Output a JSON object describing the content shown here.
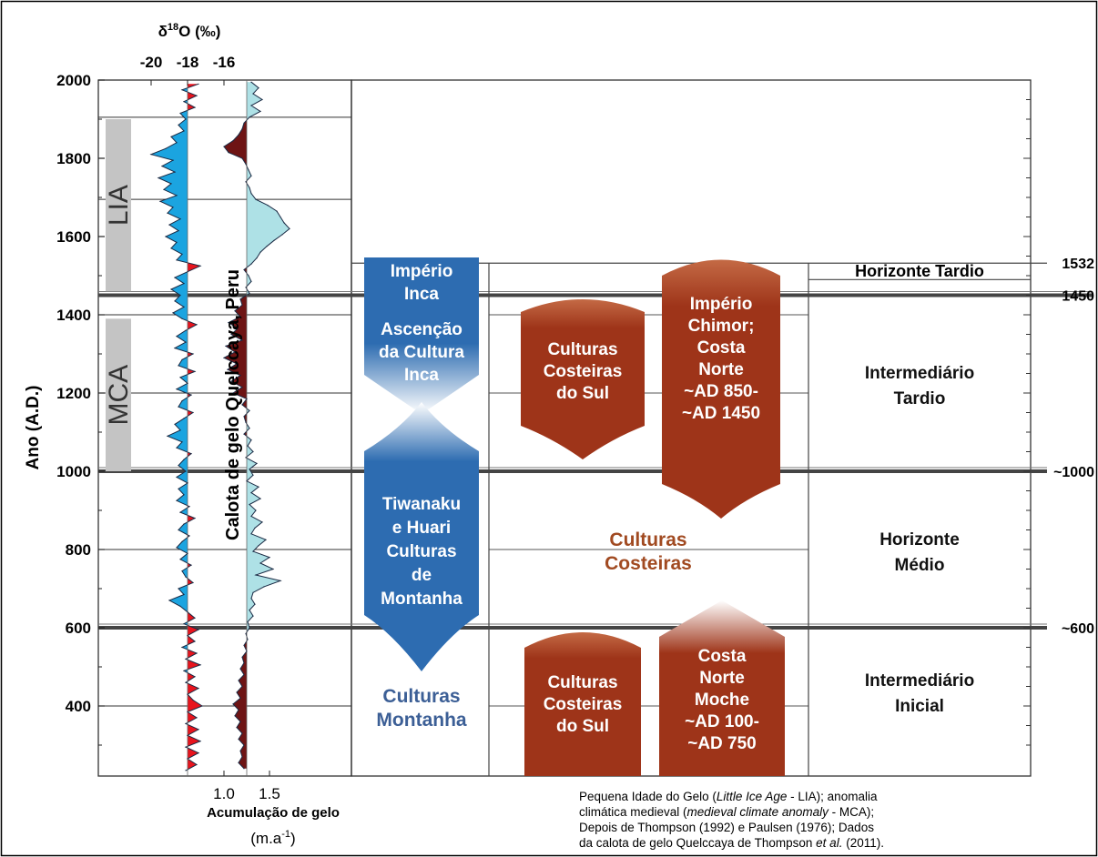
{
  "chart_data": {
    "type": "area",
    "title": "",
    "ylabel": "Ano (A.D.)",
    "ylim": [
      220,
      2000
    ],
    "yticks": [
      400,
      600,
      800,
      1000,
      1200,
      1400,
      1600,
      1800,
      2000
    ],
    "core_label": "Calota de gelo Quelccaya, Peru",
    "d18o": {
      "label_prefix": "δ",
      "label_sup": "18",
      "label_suffix": "O (‰)",
      "ticks": [
        "-20",
        "-18",
        "-16"
      ],
      "tick_values": [
        -20,
        -18,
        -16
      ],
      "baseline": -18.0,
      "colors": {
        "positive": "#e8141d",
        "negative": "#1ba4e0"
      },
      "values": [
        [
          1990,
          -17.4
        ],
        [
          1975,
          -18.3
        ],
        [
          1960,
          -17.5
        ],
        [
          1945,
          -18.2
        ],
        [
          1930,
          -17.6
        ],
        [
          1915,
          -18.4
        ],
        [
          1900,
          -18.1
        ],
        [
          1885,
          -18.5
        ],
        [
          1870,
          -18.2
        ],
        [
          1855,
          -18.9
        ],
        [
          1840,
          -18.6
        ],
        [
          1825,
          -19.2
        ],
        [
          1810,
          -20.0
        ],
        [
          1795,
          -18.8
        ],
        [
          1780,
          -19.4
        ],
        [
          1765,
          -18.7
        ],
        [
          1750,
          -19.6
        ],
        [
          1735,
          -18.9
        ],
        [
          1720,
          -19.3
        ],
        [
          1705,
          -18.6
        ],
        [
          1690,
          -19.5
        ],
        [
          1675,
          -18.8
        ],
        [
          1660,
          -19.1
        ],
        [
          1645,
          -18.4
        ],
        [
          1630,
          -19.0
        ],
        [
          1615,
          -18.5
        ],
        [
          1600,
          -19.2
        ],
        [
          1585,
          -18.6
        ],
        [
          1570,
          -18.9
        ],
        [
          1555,
          -18.3
        ],
        [
          1540,
          -18.6
        ],
        [
          1525,
          -17.3
        ],
        [
          1510,
          -18.0
        ],
        [
          1495,
          -18.7
        ],
        [
          1480,
          -18.2
        ],
        [
          1465,
          -18.9
        ],
        [
          1450,
          -18.4
        ],
        [
          1435,
          -18.7
        ],
        [
          1420,
          -18.2
        ],
        [
          1405,
          -18.8
        ],
        [
          1390,
          -18.3
        ],
        [
          1375,
          -17.5
        ],
        [
          1360,
          -18.1
        ],
        [
          1345,
          -18.6
        ],
        [
          1330,
          -18.1
        ],
        [
          1315,
          -18.7
        ],
        [
          1300,
          -17.7
        ],
        [
          1285,
          -18.3
        ],
        [
          1270,
          -18.5
        ],
        [
          1255,
          -17.6
        ],
        [
          1240,
          -18.4
        ],
        [
          1225,
          -18.0
        ],
        [
          1210,
          -18.6
        ],
        [
          1195,
          -17.8
        ],
        [
          1180,
          -18.3
        ],
        [
          1165,
          -18.5
        ],
        [
          1150,
          -17.7
        ],
        [
          1135,
          -18.2
        ],
        [
          1120,
          -18.7
        ],
        [
          1105,
          -18.4
        ],
        [
          1090,
          -19.1
        ],
        [
          1075,
          -18.3
        ],
        [
          1060,
          -18.6
        ],
        [
          1045,
          -17.8
        ],
        [
          1030,
          -18.2
        ],
        [
          1015,
          -18.5
        ],
        [
          1000,
          -18.1
        ],
        [
          985,
          -18.6
        ],
        [
          970,
          -18.0
        ],
        [
          955,
          -18.5
        ],
        [
          940,
          -18.2
        ],
        [
          925,
          -18.6
        ],
        [
          910,
          -17.9
        ],
        [
          895,
          -18.4
        ],
        [
          880,
          -17.6
        ],
        [
          865,
          -18.2
        ],
        [
          850,
          -18.5
        ],
        [
          835,
          -17.9
        ],
        [
          820,
          -18.3
        ],
        [
          805,
          -18.6
        ],
        [
          790,
          -18.0
        ],
        [
          775,
          -18.4
        ],
        [
          760,
          -17.8
        ],
        [
          745,
          -18.3
        ],
        [
          730,
          -18.1
        ],
        [
          715,
          -17.7
        ],
        [
          700,
          -18.5
        ],
        [
          685,
          -18.2
        ],
        [
          670,
          -19.0
        ],
        [
          655,
          -18.4
        ],
        [
          640,
          -18.0
        ],
        [
          625,
          -17.6
        ],
        [
          610,
          -18.2
        ],
        [
          595,
          -17.4
        ],
        [
          580,
          -18.0
        ],
        [
          565,
          -17.6
        ],
        [
          550,
          -18.3
        ],
        [
          535,
          -17.5
        ],
        [
          520,
          -18.1
        ],
        [
          505,
          -17.3
        ],
        [
          490,
          -18.2
        ],
        [
          475,
          -17.6
        ],
        [
          460,
          -18.1
        ],
        [
          445,
          -17.4
        ],
        [
          430,
          -18.0
        ],
        [
          415,
          -17.7
        ],
        [
          400,
          -17.2
        ],
        [
          385,
          -18.0
        ],
        [
          370,
          -17.5
        ],
        [
          355,
          -18.1
        ],
        [
          340,
          -17.4
        ],
        [
          325,
          -18.0
        ],
        [
          310,
          -17.3
        ],
        [
          295,
          -18.1
        ],
        [
          280,
          -17.4
        ],
        [
          265,
          -18.0
        ],
        [
          250,
          -17.5
        ],
        [
          235,
          -18.1
        ]
      ]
    },
    "accumulation": {
      "xlabel": "Acumulação de gelo",
      "unit_prefix": "(m.a",
      "unit_sup": "-1",
      "unit_suffix": ")",
      "ticks": [
        "1.0",
        "1.5"
      ],
      "tick_values": [
        1.0,
        1.5
      ],
      "baseline": 1.25,
      "colors": {
        "positive": "#aee1e6",
        "negative": "#6e1414"
      },
      "values": [
        [
          1995,
          1.3
        ],
        [
          1980,
          1.38
        ],
        [
          1965,
          1.32
        ],
        [
          1950,
          1.42
        ],
        [
          1935,
          1.3
        ],
        [
          1920,
          1.4
        ],
        [
          1905,
          1.28
        ],
        [
          1890,
          1.22
        ],
        [
          1875,
          1.2
        ],
        [
          1860,
          1.16
        ],
        [
          1845,
          1.1
        ],
        [
          1830,
          1.0
        ],
        [
          1815,
          1.05
        ],
        [
          1800,
          1.2
        ],
        [
          1785,
          1.24
        ],
        [
          1770,
          1.27
        ],
        [
          1755,
          1.3
        ],
        [
          1740,
          1.24
        ],
        [
          1725,
          1.28
        ],
        [
          1710,
          1.3
        ],
        [
          1695,
          1.35
        ],
        [
          1680,
          1.48
        ],
        [
          1665,
          1.58
        ],
        [
          1650,
          1.62
        ],
        [
          1635,
          1.66
        ],
        [
          1620,
          1.72
        ],
        [
          1605,
          1.64
        ],
        [
          1590,
          1.55
        ],
        [
          1575,
          1.47
        ],
        [
          1560,
          1.4
        ],
        [
          1545,
          1.36
        ],
        [
          1530,
          1.3
        ],
        [
          1515,
          1.22
        ],
        [
          1500,
          1.27
        ],
        [
          1485,
          1.3
        ],
        [
          1470,
          1.24
        ],
        [
          1455,
          1.28
        ],
        [
          1440,
          1.18
        ],
        [
          1425,
          1.2
        ],
        [
          1410,
          1.12
        ],
        [
          1395,
          1.18
        ],
        [
          1380,
          1.05
        ],
        [
          1365,
          1.15
        ],
        [
          1350,
          1.08
        ],
        [
          1335,
          1.2
        ],
        [
          1320,
          1.02
        ],
        [
          1305,
          1.12
        ],
        [
          1290,
          1.0
        ],
        [
          1275,
          1.14
        ],
        [
          1260,
          1.04
        ],
        [
          1245,
          1.18
        ],
        [
          1230,
          1.08
        ],
        [
          1215,
          1.2
        ],
        [
          1200,
          1.1
        ],
        [
          1185,
          1.25
        ],
        [
          1170,
          1.2
        ],
        [
          1155,
          1.28
        ],
        [
          1140,
          1.22
        ],
        [
          1125,
          1.24
        ],
        [
          1110,
          1.28
        ],
        [
          1095,
          1.22
        ],
        [
          1080,
          1.3
        ],
        [
          1065,
          1.26
        ],
        [
          1050,
          1.32
        ],
        [
          1035,
          1.24
        ],
        [
          1020,
          1.36
        ],
        [
          1005,
          1.28
        ],
        [
          990,
          1.32
        ],
        [
          975,
          1.25
        ],
        [
          960,
          1.38
        ],
        [
          945,
          1.3
        ],
        [
          930,
          1.4
        ],
        [
          915,
          1.28
        ],
        [
          900,
          1.35
        ],
        [
          885,
          1.3
        ],
        [
          870,
          1.42
        ],
        [
          855,
          1.34
        ],
        [
          840,
          1.3
        ],
        [
          825,
          1.46
        ],
        [
          810,
          1.38
        ],
        [
          795,
          1.32
        ],
        [
          780,
          1.5
        ],
        [
          765,
          1.4
        ],
        [
          750,
          1.54
        ],
        [
          735,
          1.35
        ],
        [
          720,
          1.62
        ],
        [
          705,
          1.44
        ],
        [
          690,
          1.32
        ],
        [
          675,
          1.3
        ],
        [
          660,
          1.34
        ],
        [
          645,
          1.28
        ],
        [
          630,
          1.32
        ],
        [
          615,
          1.26
        ],
        [
          600,
          1.28
        ],
        [
          585,
          1.24
        ],
        [
          570,
          1.26
        ],
        [
          555,
          1.22
        ],
        [
          540,
          1.25
        ],
        [
          525,
          1.2
        ],
        [
          510,
          1.22
        ],
        [
          495,
          1.18
        ],
        [
          480,
          1.22
        ],
        [
          465,
          1.16
        ],
        [
          450,
          1.2
        ],
        [
          435,
          1.14
        ],
        [
          420,
          1.18
        ],
        [
          405,
          1.1
        ],
        [
          390,
          1.16
        ],
        [
          375,
          1.12
        ],
        [
          360,
          1.18
        ],
        [
          345,
          1.14
        ],
        [
          330,
          1.2
        ],
        [
          315,
          1.16
        ],
        [
          300,
          1.22
        ],
        [
          285,
          1.18
        ],
        [
          270,
          1.2
        ],
        [
          255,
          1.16
        ],
        [
          240,
          1.22
        ]
      ]
    },
    "periods": [
      {
        "label": "LIA",
        "from": 1460,
        "to": 1900
      },
      {
        "label": "MCA",
        "from": 1000,
        "to": 1390
      }
    ],
    "boundary_years": [
      {
        "year": 1532,
        "label": "1532"
      },
      {
        "year": 1450,
        "label": "1450"
      },
      {
        "year": 1000,
        "label": "~1000"
      },
      {
        "year": 600,
        "label": "~600"
      }
    ],
    "highland": {
      "inca": [
        "Império",
        "Inca"
      ],
      "rise": [
        "Ascenção",
        "da Cultura",
        "Inca"
      ],
      "tiwanaku": [
        "Tiwanaku",
        "e Huari",
        "Culturas",
        "de",
        "Montanha"
      ],
      "mountain": [
        "Culturas",
        "Montanha"
      ]
    },
    "coastal": {
      "south_upper": [
        "Culturas",
        "Costeiras",
        "do Sul"
      ],
      "chimor": [
        "Império",
        "Chimor;",
        "Costa",
        "Norte",
        "~AD 850-",
        "~AD 1450"
      ],
      "middle": [
        "Culturas",
        "Costeiras"
      ],
      "south_lower": [
        "Culturas",
        "Costeiras",
        "do Sul"
      ],
      "moche": [
        "Costa",
        "Norte",
        "Moche",
        "~AD 100-",
        "~AD 750"
      ]
    },
    "horizons": {
      "late_horizon": "Horizonte Tardio",
      "late_intermediate": [
        "Intermediário",
        "Tardio"
      ],
      "middle_horizon": [
        "Horizonte",
        "Médio"
      ],
      "early_intermediate": [
        "Intermediário",
        "Inicial"
      ]
    },
    "caption_parts": [
      {
        "text": "Pequena Idade do Gelo (",
        "style": "normal"
      },
      {
        "text": "Little Ice Age",
        "style": "italic"
      },
      {
        "text": " - LIA); anomalia",
        "style": "normal"
      },
      {
        "text": "\n",
        "style": "normal"
      },
      {
        "text": "climática medieval (",
        "style": "normal"
      },
      {
        "text": "medieval climate anomaly",
        "style": "italic"
      },
      {
        "text": " - MCA);",
        "style": "normal"
      },
      {
        "text": "\n",
        "style": "normal"
      },
      {
        "text": "Depois de Thompson (1992) e Paulsen (1976); Dados",
        "style": "normal"
      },
      {
        "text": "\n",
        "style": "normal"
      },
      {
        "text": "da calota de gelo Quelccaya de Thompson ",
        "style": "normal"
      },
      {
        "text": "et al.",
        "style": "italic"
      },
      {
        "text": " (2011).",
        "style": "normal"
      }
    ],
    "colors": {
      "blue_band": "#2d6cb1",
      "blue_text": "#3c5f96",
      "brown_band": "#9e3419",
      "brown_text": "#a14a21",
      "period_bar": "#c4c4c4"
    }
  }
}
